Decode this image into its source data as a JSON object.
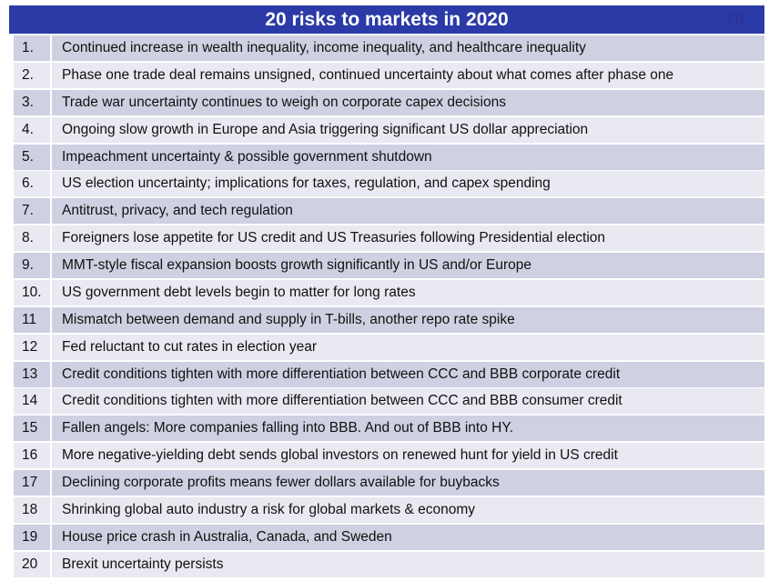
{
  "title": "20 risks to markets in 2020",
  "watermark": "ZH",
  "colors": {
    "header": "#2b3aa6",
    "row_odd": "#cfd1e2",
    "row_even": "#e8e9f1"
  },
  "rows": [
    {
      "num": "1.",
      "text": "Continued increase in wealth inequality, income inequality, and healthcare inequality"
    },
    {
      "num": "2.",
      "text": "Phase one trade deal remains unsigned, continued uncertainty about what comes after phase one"
    },
    {
      "num": "3.",
      "text": "Trade war uncertainty continues to weigh on corporate capex decisions"
    },
    {
      "num": "4.",
      "text": "Ongoing slow growth in Europe and Asia triggering significant US dollar appreciation"
    },
    {
      "num": "5.",
      "text": "Impeachment uncertainty & possible government shutdown"
    },
    {
      "num": "6.",
      "text": "US election uncertainty; implications for taxes, regulation, and capex spending"
    },
    {
      "num": "7.",
      "text": "Antitrust, privacy, and tech regulation"
    },
    {
      "num": "8.",
      "text": "Foreigners lose appetite for US credit and US Treasuries following Presidential election"
    },
    {
      "num": "9.",
      "text": "MMT-style fiscal expansion boosts growth significantly in US and/or Europe"
    },
    {
      "num": "10.",
      "text": "US government debt levels begin to matter for long rates"
    },
    {
      "num": "11",
      "text": "Mismatch between demand and supply in T-bills, another repo rate spike"
    },
    {
      "num": "12",
      "text": "Fed reluctant to cut rates in election year"
    },
    {
      "num": "13",
      "text": "Credit conditions tighten with more differentiation between CCC and BBB corporate credit"
    },
    {
      "num": "14",
      "text": "Credit conditions tighten with more differentiation between CCC and BBB consumer credit"
    },
    {
      "num": "15",
      "text": "Fallen angels: More companies falling into BBB. And out of BBB into HY."
    },
    {
      "num": "16",
      "text": "More negative-yielding debt sends global investors on renewed hunt for yield in US credit"
    },
    {
      "num": "17",
      "text": "Declining corporate profits means fewer dollars available for buybacks"
    },
    {
      "num": "18",
      "text": "Shrinking global auto industry a risk for global markets & economy"
    },
    {
      "num": "19",
      "text": "House price crash in Australia, Canada, and Sweden"
    },
    {
      "num": "20",
      "text": "Brexit uncertainty persists"
    }
  ]
}
